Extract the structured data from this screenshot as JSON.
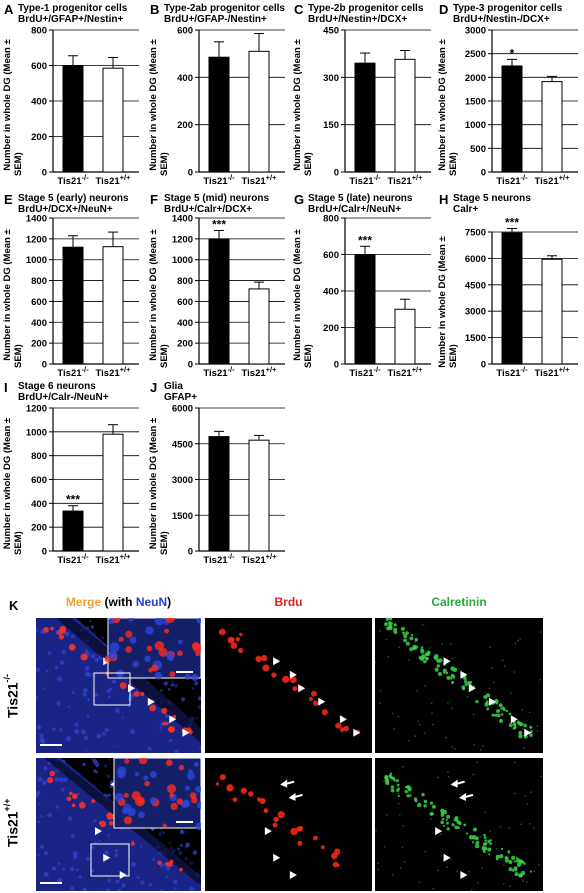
{
  "figure": {
    "categories": [
      "Tis21",
      "Tis21"
    ],
    "category_superscripts": [
      "-/-",
      "+/+"
    ],
    "colors": {
      "knockout": "#000000",
      "wildtype": "#ffffff",
      "axis": "#000000"
    }
  },
  "chart_data": [
    {
      "id": "A",
      "type": "bar",
      "letter": "A",
      "title_lines": [
        "Type-1 progenitor cells",
        "BrdU+/GFAP+/Nestin+"
      ],
      "ylabel": "Number in whole DG (Mean ± SEM)",
      "ylim": [
        0,
        800
      ],
      "yticks": [
        "0",
        "200",
        "400",
        "600",
        "800"
      ],
      "categories": [
        "Tis21-/-",
        "Tis21+/+"
      ],
      "values": [
        600,
        585
      ],
      "errors": [
        55,
        60
      ],
      "significance": [
        "",
        ""
      ]
    },
    {
      "id": "B",
      "type": "bar",
      "letter": "B",
      "title_lines": [
        "Type-2ab progenitor cells",
        "BrdU+/GFAP-/Nestin+"
      ],
      "ylabel": "Number in whole DG (Mean ± SEM)",
      "ylim": [
        0,
        600
      ],
      "yticks": [
        "0",
        "200",
        "400",
        "600"
      ],
      "categories": [
        "Tis21-/-",
        "Tis21+/+"
      ],
      "values": [
        485,
        510
      ],
      "errors": [
        65,
        75
      ],
      "significance": [
        "",
        ""
      ]
    },
    {
      "id": "C",
      "type": "bar",
      "letter": "C",
      "title_lines": [
        "Type-2b progenitor cells",
        "BrdU+/Nestin+/DCX+"
      ],
      "ylabel": "Number in whole DG (Mean ± SEM)",
      "ylim": [
        0,
        450
      ],
      "yticks": [
        "0",
        "150",
        "300",
        "450"
      ],
      "categories": [
        "Tis21-/-",
        "Tis21+/+"
      ],
      "values": [
        345,
        357
      ],
      "errors": [
        32,
        28
      ],
      "significance": [
        "",
        ""
      ]
    },
    {
      "id": "D",
      "type": "bar",
      "letter": "D",
      "title_lines": [
        "Type-3 progenitor cells",
        "BrdU+/Nestin-/DCX+"
      ],
      "ylabel": "Number in whole DG (Mean ± SEM)",
      "ylim": [
        0,
        3000
      ],
      "yticks": [
        "0",
        "500",
        "1000",
        "1500",
        "2000",
        "2500",
        "3000"
      ],
      "categories": [
        "Tis21-/-",
        "Tis21+/+"
      ],
      "values": [
        2240,
        1910
      ],
      "errors": [
        140,
        110
      ],
      "significance": [
        "*",
        ""
      ]
    },
    {
      "id": "E",
      "type": "bar",
      "letter": "E",
      "title_lines": [
        "Stage 5 (early) neurons",
        "BrdU+/DCX+/NeuN+"
      ],
      "ylabel": "Number in whole DG (Mean ± SEM)",
      "ylim": [
        0,
        1400
      ],
      "yticks": [
        "0",
        "200",
        "400",
        "600",
        "800",
        "1000",
        "1200",
        "1400"
      ],
      "categories": [
        "Tis21-/-",
        "Tis21+/+"
      ],
      "values": [
        1120,
        1125
      ],
      "errors": [
        110,
        140
      ],
      "significance": [
        "",
        ""
      ]
    },
    {
      "id": "F",
      "type": "bar",
      "letter": "F",
      "title_lines": [
        "Stage 5 (mid) neurons",
        "BrdU+/Calr+/DCX+"
      ],
      "ylabel": "Number in whole DG (Mean ± SEM)",
      "ylim": [
        0,
        1400
      ],
      "yticks": [
        "0",
        "200",
        "400",
        "600",
        "800",
        "1000",
        "1200",
        "1400"
      ],
      "categories": [
        "Tis21-/-",
        "Tis21+/+"
      ],
      "values": [
        1200,
        720
      ],
      "errors": [
        80,
        65
      ],
      "significance": [
        "***",
        ""
      ]
    },
    {
      "id": "G",
      "type": "bar",
      "letter": "G",
      "title_lines": [
        "Stage 5 (late) neurons",
        "BrdU+/Calr+/NeuN+"
      ],
      "ylabel": "Number in whole DG (Mean ± SEM)",
      "ylim": [
        0,
        800
      ],
      "yticks": [
        "0",
        "200",
        "400",
        "600",
        "800"
      ],
      "categories": [
        "Tis21-/-",
        "Tis21+/+"
      ],
      "values": [
        600,
        300
      ],
      "errors": [
        45,
        55
      ],
      "significance": [
        "***",
        ""
      ]
    },
    {
      "id": "H",
      "type": "bar",
      "letter": "H",
      "title_lines": [
        "Stage 5 neurons",
        "Calr+"
      ],
      "ylabel": "Number in whole DG (Mean ± SEM)",
      "ylim": [
        0,
        7500
      ],
      "yticks": [
        "0",
        "1500",
        "3000",
        "4500",
        "6000",
        "7500"
      ],
      "categories": [
        "Tis21-/-",
        "Tis21+/+"
      ],
      "values": [
        7450,
        5950
      ],
      "errors": [
        250,
        200
      ],
      "significance": [
        "***",
        ""
      ]
    },
    {
      "id": "I",
      "type": "bar",
      "letter": "I",
      "title_lines": [
        "Stage 6  neurons",
        "BrdU+/Calr-/NeuN+"
      ],
      "ylabel": "Number in whole DG (Mean ± SEM)",
      "ylim": [
        0,
        1200
      ],
      "yticks": [
        "0",
        "200",
        "400",
        "600",
        "800",
        "1000",
        "1200"
      ],
      "categories": [
        "Tis21-/-",
        "Tis21+/+"
      ],
      "values": [
        335,
        980
      ],
      "errors": [
        45,
        80
      ],
      "significance": [
        "***",
        ""
      ]
    },
    {
      "id": "J",
      "type": "bar",
      "letter": "J",
      "title_lines": [
        "Glia",
        "GFAP+"
      ],
      "ylabel": "Number in whole DG (Mean ± SEM)",
      "ylim": [
        0,
        6000
      ],
      "yticks": [
        "0",
        "1500",
        "3000",
        "4500",
        "6000"
      ],
      "categories": [
        "Tis21-/-",
        "Tis21+/+"
      ],
      "values": [
        4800,
        4650
      ],
      "errors": [
        220,
        200
      ],
      "significance": [
        "",
        ""
      ]
    }
  ],
  "micrographs": {
    "letter": "K",
    "columns": {
      "merge": {
        "word": "Merge",
        "paren_open": " (with ",
        "neun": "NeuN",
        "paren_close": ")"
      },
      "brdu": "Brdu",
      "calretinin": "Calretinin"
    },
    "column_colors": {
      "merge": "#f0a030",
      "with": "#000000",
      "neun": "#2a3fc8",
      "brdu": "#e0201a",
      "calretinin": "#2aa83a"
    },
    "rows": [
      {
        "base": "Tis21",
        "sup": "-/-"
      },
      {
        "base": "Tis21",
        "sup": "+/+"
      }
    ]
  }
}
